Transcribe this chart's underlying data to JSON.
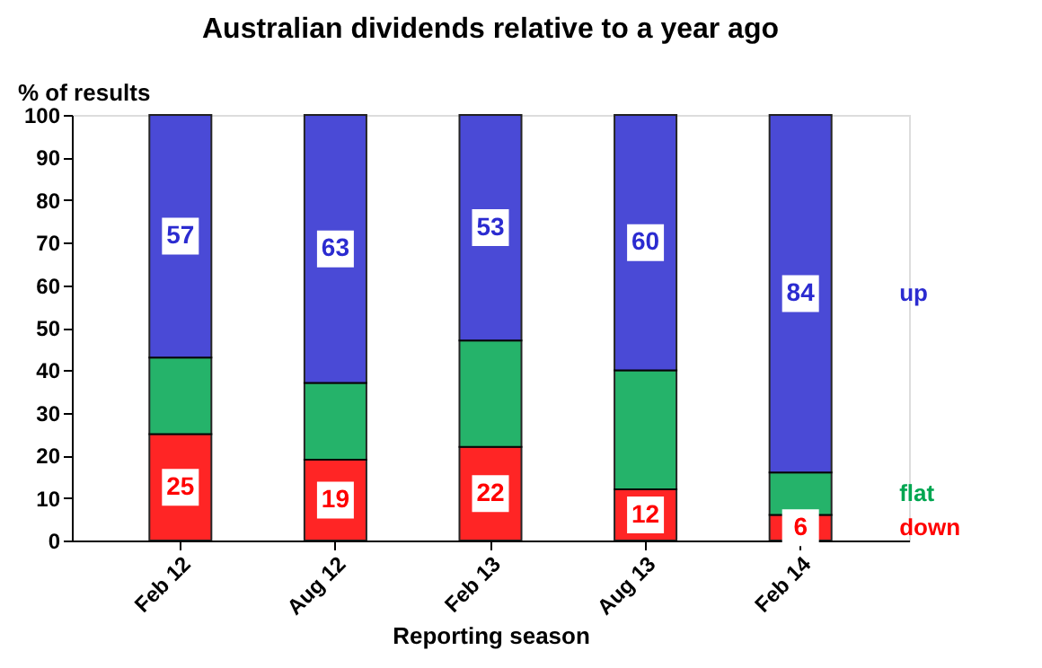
{
  "chart_data": {
    "type": "bar",
    "stacked": true,
    "title": "Australian dividends relative to a year ago",
    "ylabel": "% of results",
    "xlabel": "Reporting season",
    "categories": [
      "Feb 12",
      "Aug 12",
      "Feb 13",
      "Aug 13",
      "Feb 14"
    ],
    "series": [
      {
        "name": "down",
        "color": "#ff0000",
        "values": [
          25,
          19,
          22,
          12,
          6
        ],
        "value_labels": [
          "25",
          "19",
          "22",
          "12",
          "6"
        ]
      },
      {
        "name": "flat",
        "color": "#00a651",
        "values": [
          18,
          18,
          25,
          28,
          10
        ]
      },
      {
        "name": "up",
        "color": "#2b2bd0",
        "values": [
          57,
          63,
          53,
          60,
          84
        ],
        "value_labels": [
          "57",
          "63",
          "53",
          "60",
          "84"
        ]
      }
    ],
    "ylim": [
      0,
      100
    ],
    "yticks": [
      0,
      10,
      20,
      30,
      40,
      50,
      60,
      70,
      80,
      90,
      100
    ],
    "grid": false,
    "legend": "right"
  }
}
